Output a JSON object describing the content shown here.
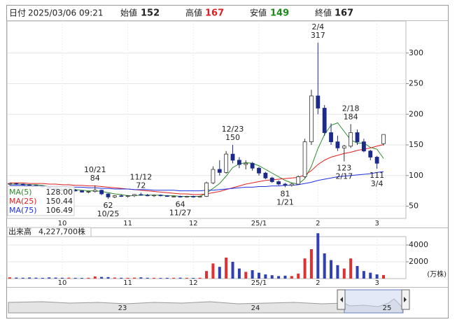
{
  "header": {
    "date_label": "日付",
    "date": "2025/03/06 09:21",
    "open_label": "始値",
    "open": 152,
    "high_label": "高値",
    "high": 167,
    "low_label": "安値",
    "low": 149,
    "close_label": "終値",
    "close": 167
  },
  "chart_data": [
    {
      "type": "candlestick",
      "categories": [
        null,
        null,
        null,
        null,
        null,
        null,
        null,
        null,
        "10",
        null,
        null,
        null,
        null,
        null,
        null,
        null,
        null,
        null,
        "11",
        null,
        null,
        null,
        null,
        null,
        null,
        null,
        null,
        null,
        "12",
        null,
        null,
        null,
        null,
        null,
        null,
        null,
        null,
        null,
        "25/1",
        null,
        null,
        null,
        null,
        null,
        null,
        null,
        null,
        "2",
        null,
        null,
        null,
        null,
        null,
        null,
        null,
        null,
        "3",
        null
      ],
      "candles": [
        [
          86,
          88,
          84,
          87
        ],
        [
          87,
          88,
          85,
          86
        ],
        [
          86,
          87,
          84,
          85
        ],
        [
          85,
          86,
          83,
          84
        ],
        [
          84,
          85,
          82,
          83
        ],
        [
          83,
          84,
          80,
          81
        ],
        [
          81,
          82,
          78,
          79
        ],
        [
          79,
          80,
          76,
          77
        ],
        [
          77,
          78,
          74,
          75
        ],
        [
          75,
          77,
          73,
          76
        ],
        [
          76,
          78,
          74,
          75
        ],
        [
          75,
          76,
          72,
          73
        ],
        [
          73,
          75,
          71,
          74
        ],
        [
          74,
          84,
          72,
          76
        ],
        [
          76,
          77,
          68,
          70
        ],
        [
          70,
          71,
          62,
          65
        ],
        [
          65,
          68,
          63,
          67
        ],
        [
          67,
          69,
          65,
          66
        ],
        [
          66,
          68,
          64,
          67
        ],
        [
          67,
          70,
          65,
          69
        ],
        [
          69,
          72,
          67,
          68
        ],
        [
          68,
          70,
          66,
          67
        ],
        [
          67,
          69,
          65,
          68
        ],
        [
          68,
          69,
          66,
          67
        ],
        [
          67,
          68,
          65,
          66
        ],
        [
          66,
          67,
          65,
          66
        ],
        [
          66,
          67,
          64,
          65
        ],
        [
          65,
          67,
          64,
          66
        ],
        [
          66,
          67,
          64,
          65
        ],
        [
          65,
          67,
          64,
          66
        ],
        [
          66,
          90,
          65,
          88
        ],
        [
          88,
          115,
          86,
          110
        ],
        [
          110,
          125,
          100,
          105
        ],
        [
          105,
          140,
          103,
          135
        ],
        [
          135,
          150,
          120,
          125
        ],
        [
          125,
          130,
          112,
          118
        ],
        [
          118,
          125,
          110,
          120
        ],
        [
          120,
          122,
          108,
          112
        ],
        [
          112,
          114,
          100,
          104
        ],
        [
          104,
          106,
          94,
          96
        ],
        [
          96,
          98,
          88,
          90
        ],
        [
          90,
          92,
          84,
          86
        ],
        [
          86,
          88,
          81,
          84
        ],
        [
          84,
          88,
          82,
          86
        ],
        [
          86,
          100,
          85,
          98
        ],
        [
          98,
          160,
          96,
          155
        ],
        [
          155,
          240,
          150,
          230
        ],
        [
          230,
          317,
          200,
          210
        ],
        [
          210,
          215,
          165,
          170
        ],
        [
          170,
          185,
          150,
          155
        ],
        [
          155,
          165,
          140,
          145
        ],
        [
          145,
          150,
          123,
          148
        ],
        [
          148,
          184,
          145,
          170
        ],
        [
          170,
          175,
          150,
          155
        ],
        [
          155,
          160,
          138,
          140
        ],
        [
          140,
          142,
          125,
          130
        ],
        [
          130,
          132,
          111,
          120
        ],
        [
          152,
          167,
          149,
          167
        ]
      ],
      "up_color": "#ffffff",
      "down_color": "#1c2a8a",
      "outline_color": "#333333",
      "ylim": [
        30,
        350
      ],
      "yticks": [
        50,
        100,
        150,
        200,
        250,
        300
      ],
      "grid": true,
      "series": [
        {
          "name": "MA(5)",
          "color": "#2e8b2e",
          "current": {
            "value": 128,
            "label": "128.00"
          },
          "values": [
            86,
            86,
            86,
            85,
            85,
            84,
            82,
            81,
            79,
            78,
            77,
            76,
            75,
            75,
            74,
            72,
            70,
            69,
            67,
            67,
            68,
            68,
            68,
            68,
            67,
            67,
            66,
            66,
            66,
            66,
            71,
            79,
            87,
            99,
            113,
            119,
            121,
            120,
            116,
            110,
            104,
            98,
            92,
            88,
            86,
            95,
            115,
            144,
            167,
            182,
            186,
            172,
            158,
            153,
            153,
            146,
            143,
            128
          ]
        },
        {
          "name": "MA(25)",
          "color": "#e02020",
          "current": 150.44,
          "values": [
            88,
            88,
            88,
            87,
            87,
            87,
            86,
            86,
            85,
            85,
            84,
            84,
            83,
            83,
            82,
            81,
            80,
            79,
            78,
            77,
            76,
            75,
            74,
            73,
            72,
            71,
            70,
            70,
            69,
            69,
            70,
            72,
            74,
            77,
            80,
            83,
            86,
            88,
            90,
            92,
            93,
            94,
            95,
            96,
            97,
            101,
            108,
            118,
            125,
            130,
            133,
            136,
            138,
            141,
            143,
            145,
            148,
            150.44
          ]
        },
        {
          "name": "MA(75)",
          "color": "#2030e0",
          "current": 106.49,
          "values": [
            84,
            84,
            84,
            83,
            83,
            83,
            82,
            82,
            82,
            81,
            81,
            81,
            80,
            80,
            79,
            79,
            78,
            78,
            78,
            77,
            77,
            77,
            76,
            76,
            76,
            76,
            75,
            75,
            75,
            75,
            76,
            76,
            77,
            78,
            79,
            80,
            81,
            81,
            82,
            82,
            83,
            83,
            84,
            84,
            85,
            87,
            89,
            92,
            94,
            96,
            98,
            99,
            100,
            101,
            102,
            103,
            105,
            106.49
          ]
        }
      ],
      "annotations": [
        {
          "index": 13,
          "date": "10/21",
          "value": 84,
          "position": "above"
        },
        {
          "index": 15,
          "date": "10/25",
          "value": 62,
          "position": "below"
        },
        {
          "index": 20,
          "date": "11/12",
          "value": 72,
          "position": "above"
        },
        {
          "index": 26,
          "date": "11/27",
          "value": 64,
          "position": "below"
        },
        {
          "index": 34,
          "date": "12/23",
          "value": 150,
          "position": "above"
        },
        {
          "index": 42,
          "date": "1/21",
          "value": 81,
          "position": "below"
        },
        {
          "index": 47,
          "date": "2/4",
          "value": 317,
          "position": "above"
        },
        {
          "index": 51,
          "date": "2/17",
          "value": 123,
          "position": "below"
        },
        {
          "index": 52,
          "date": "2/18",
          "value": 184,
          "position": "above"
        },
        {
          "index": 56,
          "date": "3/4",
          "value": 111,
          "position": "below"
        }
      ]
    },
    {
      "type": "volume",
      "title": "出来高",
      "total": {
        "value": 4227700,
        "label": "4,227,700株"
      },
      "unit": "(万株)",
      "categories": [
        null,
        null,
        null,
        null,
        null,
        null,
        null,
        null,
        "10",
        null,
        null,
        null,
        null,
        null,
        null,
        null,
        null,
        null,
        "11",
        null,
        null,
        null,
        null,
        null,
        null,
        null,
        null,
        null,
        "12",
        null,
        null,
        null,
        null,
        null,
        null,
        null,
        null,
        null,
        "25/1",
        null,
        null,
        null,
        null,
        null,
        null,
        null,
        null,
        "2",
        null,
        null,
        null,
        null,
        null,
        null,
        null,
        null,
        "3",
        null
      ],
      "values": [
        150,
        120,
        100,
        130,
        110,
        90,
        140,
        120,
        100,
        110,
        90,
        80,
        100,
        250,
        200,
        180,
        120,
        100,
        90,
        110,
        150,
        100,
        90,
        80,
        90,
        100,
        110,
        90,
        80,
        100,
        900,
        1800,
        1400,
        2500,
        2000,
        1200,
        800,
        1000,
        700,
        500,
        400,
        300,
        350,
        300,
        600,
        2400,
        3500,
        5400,
        3000,
        2200,
        1600,
        1200,
        2400,
        1500,
        900,
        700,
        500,
        423
      ],
      "up_color": "#e03030",
      "down_color": "#3040b0",
      "ylim": [
        0,
        5000
      ],
      "yticks": [
        2000,
        4000
      ],
      "grid": true
    }
  ],
  "navigator": {
    "labels": [
      "23",
      "24",
      "25"
    ]
  }
}
